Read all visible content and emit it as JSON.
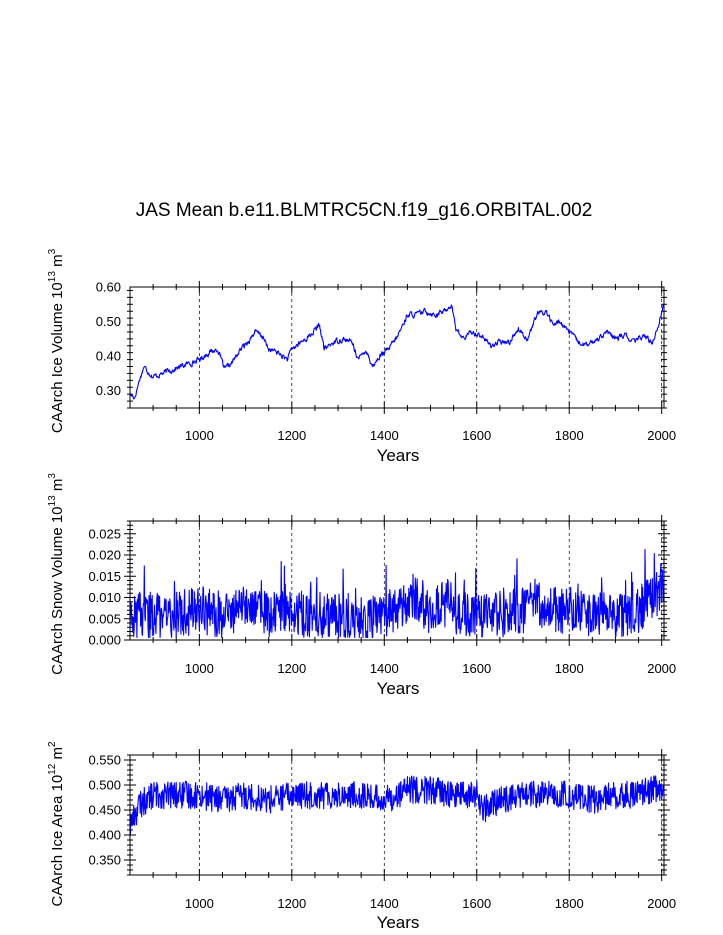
{
  "title": "JAS Mean b.e11.BLMTRC5CN.f19_g16.ORBITAL.002",
  "colors": {
    "series": "#0000ff",
    "axes": "#000000"
  },
  "chart_data": [
    {
      "type": "line",
      "ylabel": {
        "text": "CAArch Ice Volume 10",
        "sup": "13",
        "unit": " m",
        "unit_sup": "3"
      },
      "xlabel": "Years",
      "xlim": [
        850,
        2005
      ],
      "ylim": [
        0.25,
        0.6
      ],
      "xticks": [
        1000,
        1200,
        1400,
        1600,
        1800,
        2000
      ],
      "xtick_labels": [
        "1000",
        "1200",
        "1400",
        "1600",
        "1800",
        "2000"
      ],
      "yticks": [
        0.3,
        0.4,
        0.5,
        0.6
      ],
      "ytick_labels": [
        "0.30",
        "0.40",
        "0.50",
        "0.60"
      ],
      "grid": "vertical-dashed",
      "series": [
        {
          "name": "ice volume",
          "x": [
            850,
            860,
            870,
            880,
            900,
            920,
            940,
            960,
            980,
            1000,
            1020,
            1040,
            1055,
            1070,
            1090,
            1110,
            1120,
            1135,
            1150,
            1170,
            1190,
            1200,
            1220,
            1240,
            1260,
            1270,
            1290,
            1310,
            1330,
            1345,
            1360,
            1375,
            1390,
            1410,
            1430,
            1450,
            1470,
            1490,
            1510,
            1530,
            1545,
            1555,
            1570,
            1590,
            1610,
            1630,
            1650,
            1670,
            1690,
            1710,
            1730,
            1750,
            1765,
            1780,
            1800,
            1820,
            1840,
            1860,
            1880,
            1900,
            1920,
            1940,
            1960,
            1980,
            1995,
            2005
          ],
          "values": [
            0.29,
            0.28,
            0.33,
            0.37,
            0.34,
            0.35,
            0.36,
            0.37,
            0.38,
            0.39,
            0.41,
            0.42,
            0.36,
            0.38,
            0.42,
            0.45,
            0.47,
            0.46,
            0.42,
            0.41,
            0.39,
            0.42,
            0.44,
            0.46,
            0.49,
            0.42,
            0.44,
            0.45,
            0.44,
            0.39,
            0.42,
            0.37,
            0.4,
            0.42,
            0.46,
            0.52,
            0.52,
            0.53,
            0.52,
            0.53,
            0.55,
            0.48,
            0.45,
            0.47,
            0.46,
            0.43,
            0.44,
            0.44,
            0.48,
            0.45,
            0.52,
            0.53,
            0.49,
            0.5,
            0.47,
            0.44,
            0.43,
            0.45,
            0.47,
            0.45,
            0.46,
            0.44,
            0.46,
            0.44,
            0.5,
            0.56
          ],
          "variability": 0.008
        }
      ]
    },
    {
      "type": "line",
      "ylabel": {
        "text": "CAArch Snow Volume 10",
        "sup": "13",
        "unit": " m",
        "unit_sup": "3"
      },
      "xlabel": "Years",
      "xlim": [
        850,
        2005
      ],
      "ylim": [
        0.0,
        0.028
      ],
      "xticks": [
        1000,
        1200,
        1400,
        1600,
        1800,
        2000
      ],
      "xtick_labels": [
        "1000",
        "1200",
        "1400",
        "1600",
        "1800",
        "2000"
      ],
      "yticks": [
        0.0,
        0.005,
        0.01,
        0.015,
        0.02,
        0.025
      ],
      "ytick_labels": [
        "0.000",
        "0.005",
        "0.010",
        "0.015",
        "0.020",
        "0.025"
      ],
      "grid": "vertical-dashed",
      "series": [
        {
          "name": "snow volume",
          "x": [
            850,
            900,
            950,
            1000,
            1050,
            1100,
            1120,
            1150,
            1200,
            1250,
            1300,
            1350,
            1400,
            1440,
            1460,
            1480,
            1500,
            1540,
            1560,
            1600,
            1650,
            1700,
            1720,
            1750,
            1800,
            1850,
            1900,
            1950,
            1990,
            2005
          ],
          "values": [
            0.005,
            0.006,
            0.006,
            0.007,
            0.006,
            0.008,
            0.009,
            0.006,
            0.006,
            0.006,
            0.006,
            0.005,
            0.006,
            0.007,
            0.011,
            0.008,
            0.007,
            0.009,
            0.006,
            0.006,
            0.006,
            0.007,
            0.01,
            0.007,
            0.007,
            0.006,
            0.006,
            0.007,
            0.011,
            0.015
          ],
          "variability": 0.0055
        }
      ]
    },
    {
      "type": "line",
      "ylabel": {
        "text": "CAArch Ice Area 10",
        "sup": "12",
        "unit": " m",
        "unit_sup": "2"
      },
      "xlabel": "Years",
      "xlim": [
        850,
        2005
      ],
      "ylim": [
        0.32,
        0.56
      ],
      "xticks": [
        1000,
        1200,
        1400,
        1600,
        1800,
        2000
      ],
      "xtick_labels": [
        "1000",
        "1200",
        "1400",
        "1600",
        "1800",
        "2000"
      ],
      "yticks": [
        0.35,
        0.4,
        0.45,
        0.5,
        0.55
      ],
      "ytick_labels": [
        "0.350",
        "0.400",
        "0.450",
        "0.500",
        "0.550"
      ],
      "grid": "vertical-dashed",
      "series": [
        {
          "name": "ice area",
          "x": [
            850,
            870,
            900,
            950,
            1000,
            1050,
            1100,
            1150,
            1200,
            1250,
            1300,
            1350,
            1400,
            1450,
            1500,
            1550,
            1600,
            1615,
            1650,
            1700,
            1750,
            1800,
            1850,
            1900,
            1950,
            2005
          ],
          "values": [
            0.42,
            0.46,
            0.48,
            0.48,
            0.48,
            0.47,
            0.48,
            0.47,
            0.48,
            0.48,
            0.48,
            0.48,
            0.47,
            0.49,
            0.49,
            0.48,
            0.48,
            0.45,
            0.47,
            0.48,
            0.48,
            0.48,
            0.47,
            0.48,
            0.48,
            0.5
          ],
          "variability": 0.028
        }
      ]
    }
  ]
}
